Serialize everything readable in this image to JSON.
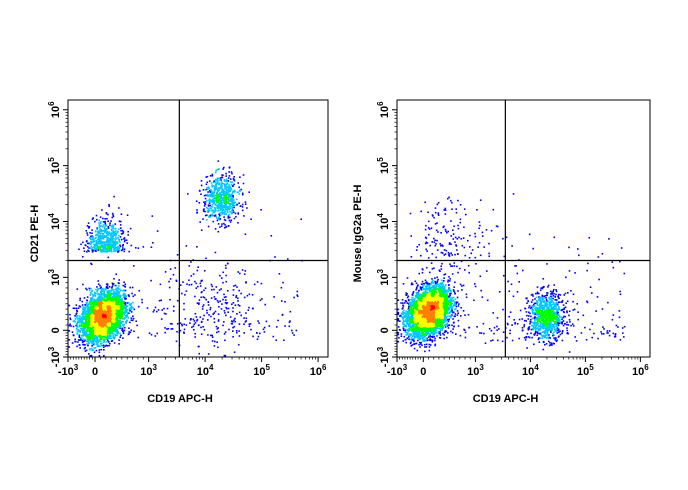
{
  "chart_data": [
    {
      "type": "scatter",
      "style": "density-pseudocolor",
      "xlabel": "CD19 APC-H",
      "ylabel": "CD21 PE-H",
      "x_scale": "biexponential",
      "y_scale": "biexponential",
      "xlim": [
        -1000,
        1000000
      ],
      "ylim": [
        -1000,
        1000000
      ],
      "x_ticks": [
        {
          "base": "-10",
          "exp": "3"
        },
        {
          "base": "0",
          "exp": ""
        },
        {
          "base": "10",
          "exp": "3"
        },
        {
          "base": "10",
          "exp": "4"
        },
        {
          "base": "10",
          "exp": "5"
        },
        {
          "base": "10",
          "exp": "6"
        }
      ],
      "y_ticks": [
        {
          "base": "-10",
          "exp": "3"
        },
        {
          "base": "0",
          "exp": ""
        },
        {
          "base": "10",
          "exp": "3"
        },
        {
          "base": "10",
          "exp": "4"
        },
        {
          "base": "10",
          "exp": "5"
        },
        {
          "base": "10",
          "exp": "6"
        }
      ],
      "quadrant_gate": {
        "x": 3500,
        "y": 2000
      },
      "populations": [
        {
          "center": [
            150,
            250
          ],
          "spread": "dense",
          "fraction": 0.72
        },
        {
          "center": [
            200,
            3500
          ],
          "spread": "moderate",
          "fraction": 0.1
        },
        {
          "center": [
            20000,
            25000
          ],
          "spread": "moderate",
          "fraction": 0.13
        },
        {
          "center": [
            15000,
            400
          ],
          "spread": "sparse",
          "fraction": 0.03
        }
      ],
      "color_scale": [
        "#0000ff",
        "#00c8ff",
        "#00ff00",
        "#ffff00",
        "#ff8000",
        "#ff0000"
      ]
    },
    {
      "type": "scatter",
      "style": "density-pseudocolor",
      "xlabel": "CD19 APC-H",
      "ylabel": "Mouse IgG2a PE-H",
      "x_scale": "biexponential",
      "y_scale": "biexponential",
      "xlim": [
        -1000,
        1000000
      ],
      "ylim": [
        -1000,
        1000000
      ],
      "x_ticks": [
        {
          "base": "-10",
          "exp": "3"
        },
        {
          "base": "0",
          "exp": ""
        },
        {
          "base": "10",
          "exp": "3"
        },
        {
          "base": "10",
          "exp": "4"
        },
        {
          "base": "10",
          "exp": "5"
        },
        {
          "base": "10",
          "exp": "6"
        }
      ],
      "y_ticks": [
        {
          "base": "-10",
          "exp": "3"
        },
        {
          "base": "0",
          "exp": ""
        },
        {
          "base": "10",
          "exp": "3"
        },
        {
          "base": "10",
          "exp": "4"
        },
        {
          "base": "10",
          "exp": "5"
        },
        {
          "base": "10",
          "exp": "6"
        }
      ],
      "quadrant_gate": {
        "x": 3500,
        "y": 2000
      },
      "populations": [
        {
          "center": [
            100,
            350
          ],
          "spread": "dense",
          "fraction": 0.8
        },
        {
          "center": [
            20000,
            250
          ],
          "spread": "moderate",
          "fraction": 0.17
        },
        {
          "center": [
            500,
            5000
          ],
          "spread": "sparse",
          "fraction": 0.03
        }
      ],
      "color_scale": [
        "#0000ff",
        "#00c8ff",
        "#00ff00",
        "#ffff00",
        "#ff8000",
        "#ff0000"
      ]
    }
  ]
}
